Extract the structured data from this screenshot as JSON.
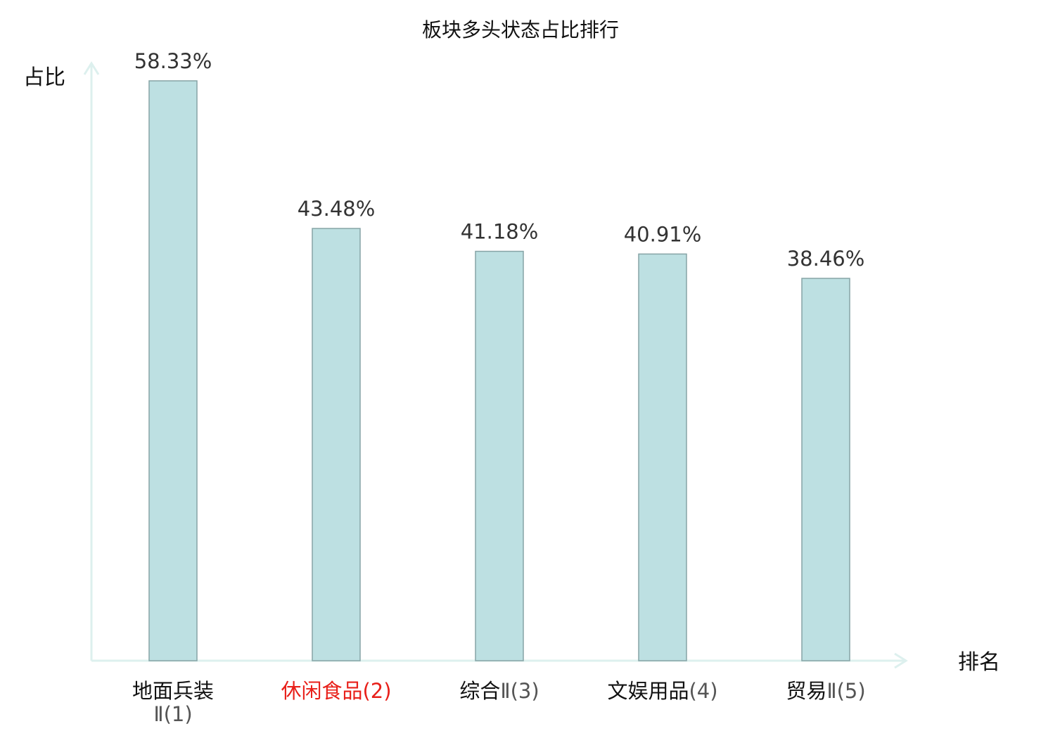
{
  "chart_data": {
    "type": "bar",
    "title": "板块多头状态占比排行",
    "ylabel": "占比",
    "xlabel": "排名",
    "categories": [
      {
        "name": "地面兵装",
        "suffix": "Ⅱ(1)",
        "wrap": true,
        "highlight": false
      },
      {
        "name": "休闲食品",
        "suffix": "(2)",
        "wrap": false,
        "highlight": true
      },
      {
        "name": "综合",
        "suffix": "Ⅱ(3)",
        "wrap": false,
        "highlight": false
      },
      {
        "name": "文娱用品",
        "suffix": "(4)",
        "wrap": false,
        "highlight": false
      },
      {
        "name": "贸易",
        "suffix": "Ⅱ(5)",
        "wrap": false,
        "highlight": false
      }
    ],
    "values": [
      58.33,
      43.48,
      41.18,
      40.91,
      38.46
    ],
    "value_labels": [
      "58.33%",
      "43.48%",
      "41.18%",
      "40.91%",
      "38.46%"
    ],
    "ylim": [
      0,
      58.33
    ],
    "grid": false,
    "colors": {
      "bar_fill": "#bde0e2",
      "bar_stroke": "#86a4a6",
      "axis": "#ddf0ee",
      "label": "#333333",
      "highlight": "#e8201a",
      "suffix": "#555555"
    }
  }
}
